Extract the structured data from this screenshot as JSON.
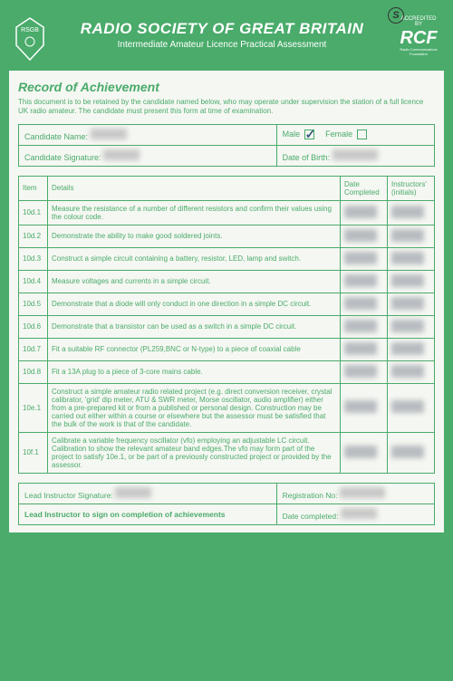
{
  "header": {
    "title": "RADIO SOCIETY OF GREAT BRITAIN",
    "subtitle": "Intermediate Amateur Licence Practical Assessment",
    "left_logo_text": "RSGB",
    "accredited": "ACCREDITED BY",
    "rcf": "RCF",
    "rcf_sub": "Radio Communications Foundation"
  },
  "section_title": "Record of Achievement",
  "intro": "This document is to be retained by the candidate named below, who may operate under supervision the station of a full licence UK radio amateur.  The candidate must present this form at time of examination.",
  "info": {
    "name_label": "Candidate Name:",
    "male_label": "Male",
    "female_label": "Female",
    "male_checked": true,
    "female_checked": false,
    "sig_label": "Candidate Signature:",
    "dob_label": "Date of Birth:"
  },
  "table": {
    "headers": {
      "item": "Item",
      "details": "Details",
      "date": "Date Completed",
      "init": "Instructors' (initials)"
    },
    "rows": [
      {
        "id": "10d.1",
        "detail": "Measure the resistance of a number of different resistors and confirm their values using the colour code."
      },
      {
        "id": "10d.2",
        "detail": "Demonstrate the ability to make good soldered joints."
      },
      {
        "id": "10d.3",
        "detail": "Construct a simple circuit containing a battery, resistor, LED, lamp and switch."
      },
      {
        "id": "10d.4",
        "detail": "Measure voltages and currents in a simple circuit."
      },
      {
        "id": "10d.5",
        "detail": "Demonstrate that a diode will only conduct in one direction in a simple DC circuit."
      },
      {
        "id": "10d.6",
        "detail": "Demonstrate that a transistor can be used as a switch in a simple DC circuit."
      },
      {
        "id": "10d.7",
        "detail": "Fit a suitable RF connector (PL259,BNC or N-type) to a piece of coaxial cable"
      },
      {
        "id": "10d.8",
        "detail": "Fit a 13A plug to a piece of 3-core mains cable."
      },
      {
        "id": "10e.1",
        "detail": "Construct a simple amateur radio related project (e.g. direct conversion receiver, crystal calibrator, 'grid' dip meter, ATU & SWR meter, Morse oscillator, audio amplifier) either from a pre-prepared kit or from a published or personal design.  Construction may be carried out either within a course or elsewhere but the assessor must be satisfied that the bulk of the work is that of the candidate."
      },
      {
        "id": "10f.1",
        "detail": "Calibrate a variable frequency oscillator (vfo) employing an adjustable LC circuit. Calibration to show the relevant amateur band edges.The vfo may form part of the project to satisfy 10e.1, or be part of a previously constructed project or provided by the assessor."
      }
    ]
  },
  "footer": {
    "lead_sig": "Lead Instructor Signature:",
    "reg_no": "Registration No:",
    "lead_note": "Lead Instructor to sign on completion of achievements",
    "date_completed": "Date completed:"
  },
  "colors": {
    "green": "#4aab6b",
    "paper": "#f5f7f2",
    "ink": "#3a5a7a"
  }
}
